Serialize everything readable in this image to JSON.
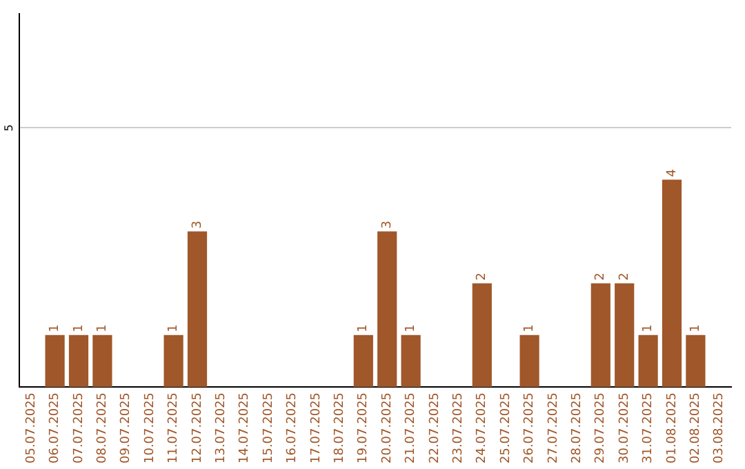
{
  "chart_data": {
    "type": "bar",
    "categories": [
      "05.07.2025",
      "06.07.2025",
      "07.07.2025",
      "08.07.2025",
      "09.07.2025",
      "10.07.2025",
      "11.07.2025",
      "12.07.2025",
      "13.07.2025",
      "14.07.2025",
      "15.07.2025",
      "16.07.2025",
      "17.07.2025",
      "18.07.2025",
      "19.07.2025",
      "20.07.2025",
      "21.07.2025",
      "22.07.2025",
      "23.07.2025",
      "24.07.2025",
      "25.07.2025",
      "26.07.2025",
      "27.07.2025",
      "28.07.2025",
      "29.07.2025",
      "30.07.2025",
      "31.07.2025",
      "01.08.2025",
      "02.08.2025",
      "03.08.2025"
    ],
    "values": [
      0,
      1,
      1,
      1,
      0,
      0,
      1,
      3,
      0,
      0,
      0,
      0,
      0,
      0,
      1,
      3,
      1,
      0,
      0,
      2,
      0,
      1,
      0,
      0,
      2,
      2,
      1,
      4,
      1,
      0
    ],
    "value_labels": [
      null,
      "1",
      "1",
      "1",
      null,
      null,
      "1",
      "3",
      null,
      null,
      null,
      null,
      null,
      null,
      "1",
      "3",
      "1",
      null,
      null,
      "2",
      null,
      "1",
      null,
      null,
      "2",
      "2",
      "1",
      "4",
      "1",
      null
    ],
    "color": "#a0572a",
    "ylim": [
      0,
      7.2
    ],
    "yticks": [
      5
    ],
    "grid": "y",
    "legend": false
  }
}
